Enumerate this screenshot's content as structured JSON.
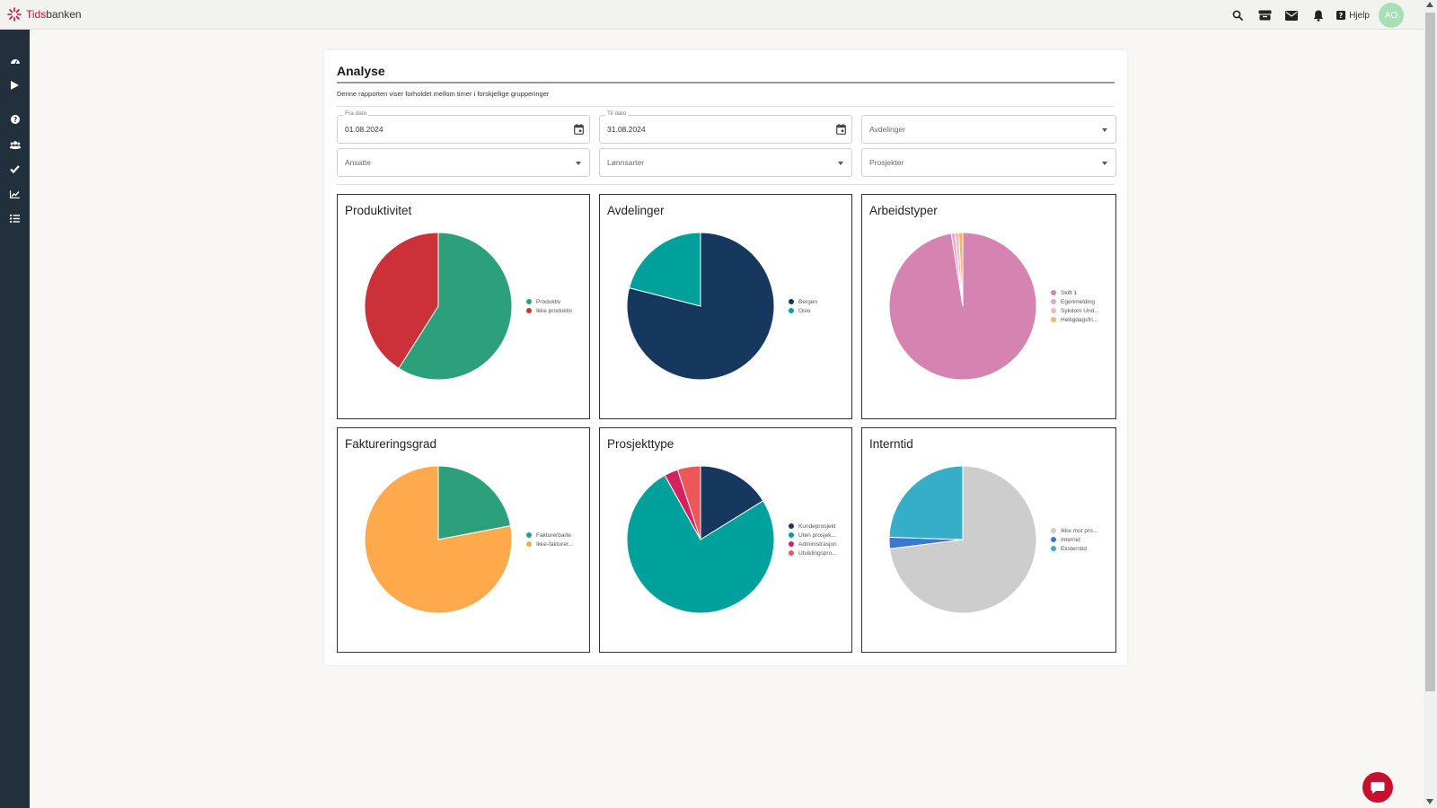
{
  "app": {
    "logo_text_brand": "Tids",
    "logo_text_rest": "banken"
  },
  "topbar": {
    "icons": [
      "search-icon",
      "inbox-icon",
      "mail-icon",
      "bell-icon"
    ],
    "help_label": "Hjelp",
    "avatar_initials": "AO"
  },
  "sidebar": {
    "items": [
      {
        "icon": "dashboard-icon"
      },
      {
        "icon": "play-icon"
      },
      {
        "icon": "question-icon"
      },
      {
        "icon": "users-icon"
      },
      {
        "icon": "check-icon"
      },
      {
        "icon": "chart-icon"
      },
      {
        "icon": "list-icon"
      }
    ]
  },
  "page": {
    "title": "Analyse",
    "description": "Denne rapporten viser forholdet mellom timer i forskjellige grupperinger"
  },
  "filters": {
    "from_date": {
      "legend": "Fra dato",
      "value": "01.08.2024"
    },
    "to_date": {
      "legend": "Til dato",
      "value": "31.08.2024"
    },
    "departments": {
      "placeholder": "Avdelinger"
    },
    "employees": {
      "placeholder": "Ansatte"
    },
    "wage_types": {
      "placeholder": "Lønnsarter"
    },
    "projects": {
      "placeholder": "Prosjekter"
    }
  },
  "chart_data": [
    {
      "type": "pie",
      "title": "Produktivitet",
      "labels": [
        "Produktiv",
        "Ikke produktiv"
      ],
      "values": [
        59,
        41
      ],
      "colors": [
        "#2ca07a",
        "#cc3038"
      ]
    },
    {
      "type": "pie",
      "title": "Avdelinger",
      "labels": [
        "Bergen",
        "Oslo"
      ],
      "values": [
        79,
        21
      ],
      "colors": [
        "#17385e",
        "#00a19d"
      ]
    },
    {
      "type": "pie",
      "title": "Arbeidstyper",
      "labels": [
        "Skift 1",
        "Egenmelding",
        "Sykdom Und...",
        "Helligdagsfri..."
      ],
      "values": [
        97.5,
        0.8,
        0.8,
        0.9
      ],
      "colors": [
        "#d584b1",
        "#e6a9cc",
        "#f3b7c4",
        "#f6b66a"
      ]
    },
    {
      "type": "pie",
      "title": "Faktureringsgrad",
      "labels": [
        "Fakturerbarte",
        "Ikke-fakturer..."
      ],
      "values": [
        22,
        78
      ],
      "colors": [
        "#2ca07a",
        "#fea94c"
      ]
    },
    {
      "type": "pie",
      "title": "Prosjekttype",
      "labels": [
        "Kundeprosjekt",
        "Uten prosjek...",
        "Administrasjon",
        "Utviklingspro..."
      ],
      "values": [
        16,
        75,
        3,
        5
      ],
      "colors": [
        "#17385e",
        "#00a19d",
        "#d6215f",
        "#ee5757"
      ]
    },
    {
      "type": "pie",
      "title": "Interntid",
      "labels": [
        "Ikke mot pro...",
        "Internid",
        "Eksterntid"
      ],
      "values": [
        73,
        2.5,
        24.5
      ],
      "colors": [
        "#cdcdcd",
        "#3b78d1",
        "#36aec9"
      ]
    }
  ]
}
